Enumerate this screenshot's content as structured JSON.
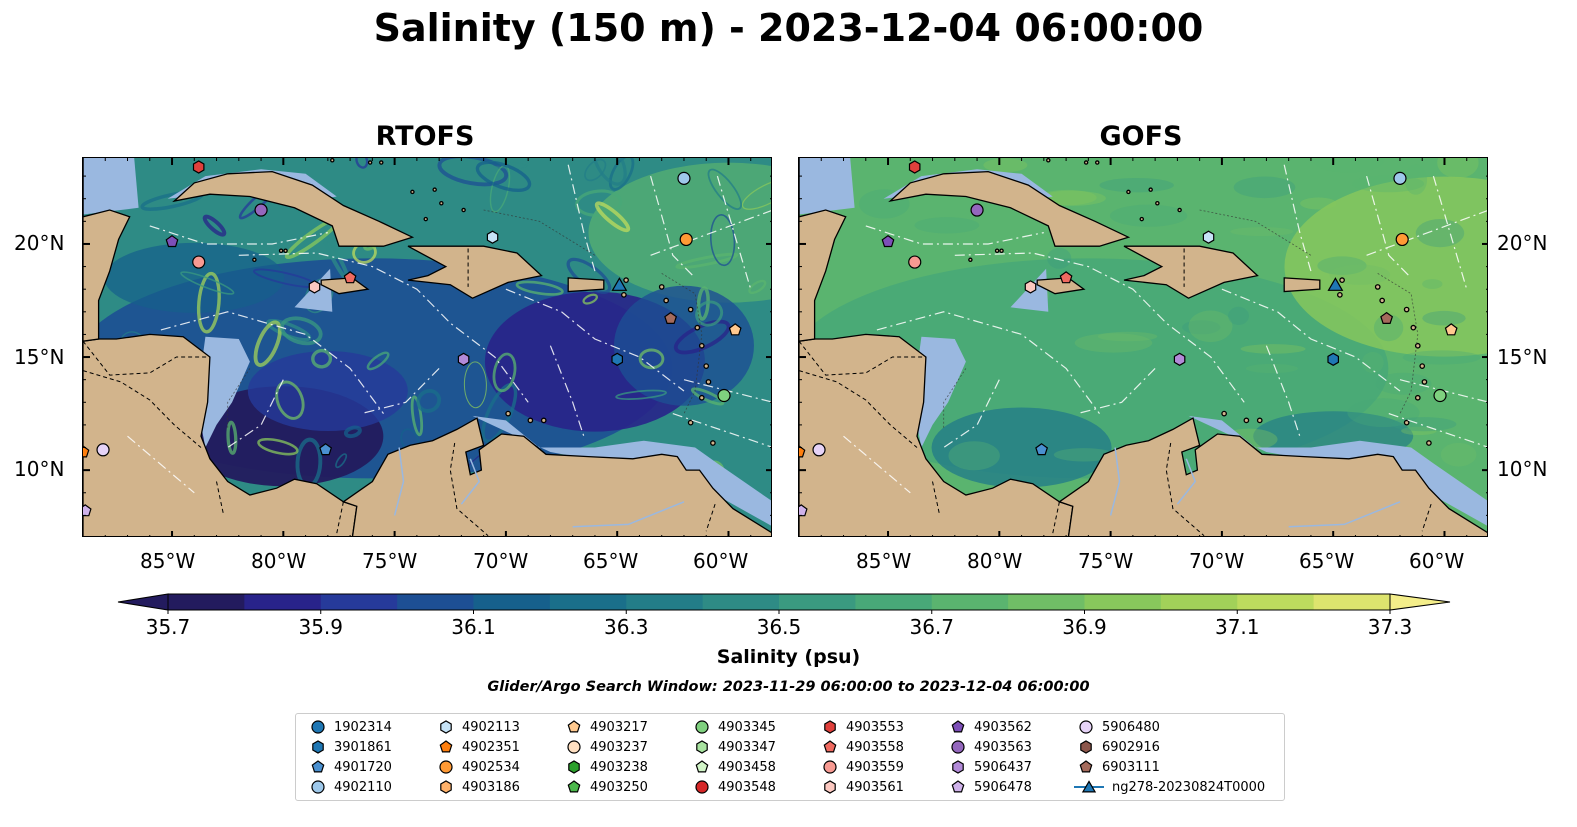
{
  "title": "Salinity (150 m) - 2023-12-04 06:00:00",
  "panels": [
    {
      "title": "RTOFS"
    },
    {
      "title": "GOFS"
    }
  ],
  "lon_ticks": [
    "85°W",
    "80°W",
    "75°W",
    "70°W",
    "65°W",
    "60°W"
  ],
  "lat_ticks": [
    "20°N",
    "15°N",
    "10°N"
  ],
  "colorbar": {
    "label": "Salinity (psu)",
    "tick_labels": [
      "35.7",
      "35.9",
      "36.1",
      "36.3",
      "36.5",
      "36.7",
      "36.9",
      "37.1",
      "37.3"
    ],
    "colors": [
      "#231b5e",
      "#28238a",
      "#263a9a",
      "#1d4f94",
      "#16608c",
      "#1a6f8a",
      "#237d88",
      "#2e8b85",
      "#3a9a80",
      "#48a878",
      "#5ab46f",
      "#70be66",
      "#88c85c",
      "#a2d159",
      "#bddb5e",
      "#dde46e"
    ]
  },
  "search_window": "Glider/Argo Search Window: 2023-11-29 06:00:00 to 2023-12-04 06:00:00",
  "legend": [
    {
      "label": "1902314",
      "marker": "circle",
      "color": "#1f77b4"
    },
    {
      "label": "3901861",
      "marker": "hexagon",
      "color": "#1f77b4"
    },
    {
      "label": "4901720",
      "marker": "pentagon",
      "color": "#4a90d0"
    },
    {
      "label": "4902110",
      "marker": "circle",
      "color": "#9ec8ea"
    },
    {
      "label": "4902113",
      "marker": "hexagon",
      "color": "#c6e3f7"
    },
    {
      "label": "4902351",
      "marker": "pentagon",
      "color": "#ff7f0e"
    },
    {
      "label": "4902534",
      "marker": "circle",
      "color": "#ff9a35"
    },
    {
      "label": "4903186",
      "marker": "hexagon",
      "color": "#ffb26b"
    },
    {
      "label": "4903217",
      "marker": "pentagon",
      "color": "#ffc98f"
    },
    {
      "label": "4903237",
      "marker": "circle",
      "color": "#ffe0c2"
    },
    {
      "label": "4903238",
      "marker": "hexagon",
      "color": "#2ca02c"
    },
    {
      "label": "4903250",
      "marker": "pentagon",
      "color": "#4cb84c"
    },
    {
      "label": "4903345",
      "marker": "circle",
      "color": "#7fd17f"
    },
    {
      "label": "4903347",
      "marker": "hexagon",
      "color": "#a8e3a0"
    },
    {
      "label": "4903458",
      "marker": "pentagon",
      "color": "#d2f5c8"
    },
    {
      "label": "4903548",
      "marker": "circle",
      "color": "#d62728"
    },
    {
      "label": "4903553",
      "marker": "hexagon",
      "color": "#e0403c"
    },
    {
      "label": "4903558",
      "marker": "pentagon",
      "color": "#f06a60"
    },
    {
      "label": "4903559",
      "marker": "circle",
      "color": "#f79a92"
    },
    {
      "label": "4903561",
      "marker": "hexagon",
      "color": "#fcc8c0"
    },
    {
      "label": "4903562",
      "marker": "pentagon",
      "color": "#7d4fb8"
    },
    {
      "label": "4903563",
      "marker": "circle",
      "color": "#9467bd"
    },
    {
      "label": "5906437",
      "marker": "hexagon",
      "color": "#b28ad8"
    },
    {
      "label": "5906478",
      "marker": "pentagon",
      "color": "#cfb2ea"
    },
    {
      "label": "5906480",
      "marker": "circle",
      "color": "#e6d3f7"
    },
    {
      "label": "6902916",
      "marker": "hexagon",
      "color": "#8c564b"
    },
    {
      "label": "6903111",
      "marker": "pentagon",
      "color": "#a56b5c"
    },
    {
      "label": "ng278-20230824T0000",
      "marker": "triangle-line",
      "color": "#1f77b4"
    }
  ],
  "map_colors": {
    "land": "#d2b48c",
    "shelf": "#9ab8e0"
  },
  "floats": [
    {
      "id": "4903553",
      "lon": -83.8,
      "lat": 23.4
    },
    {
      "id": "4903563",
      "lon": -81.0,
      "lat": 21.5
    },
    {
      "id": "4903562",
      "lon": -85.0,
      "lat": 20.1
    },
    {
      "id": "4903559",
      "lon": -83.8,
      "lat": 19.2
    },
    {
      "id": "4903558",
      "lon": -77.0,
      "lat": 18.5
    },
    {
      "id": "4903561",
      "lon": -78.6,
      "lat": 18.1
    },
    {
      "id": "4902113",
      "lon": -70.6,
      "lat": 20.3
    },
    {
      "id": "4902110",
      "lon": -62.0,
      "lat": 22.9
    },
    {
      "id": "4902534",
      "lon": -61.9,
      "lat": 20.2
    },
    {
      "id": "ng278-20230824T0000",
      "lon": -64.9,
      "lat": 18.2
    },
    {
      "id": "6903111",
      "lon": -62.6,
      "lat": 16.7
    },
    {
      "id": "5906437",
      "lon": -71.9,
      "lat": 14.9
    },
    {
      "id": "3901861",
      "lon": -65.0,
      "lat": 14.9
    },
    {
      "id": "4903345",
      "lon": -60.2,
      "lat": 13.3
    },
    {
      "id": "4901720",
      "lon": -78.1,
      "lat": 10.9
    },
    {
      "id": "5906480",
      "lon": -88.1,
      "lat": 10.9
    },
    {
      "id": "4903217",
      "lon": -59.7,
      "lat": 16.2
    },
    {
      "id": "4902351",
      "lon": -89.0,
      "lat": 10.8
    },
    {
      "id": "5906478",
      "lon": -88.9,
      "lat": 8.2
    }
  ]
}
